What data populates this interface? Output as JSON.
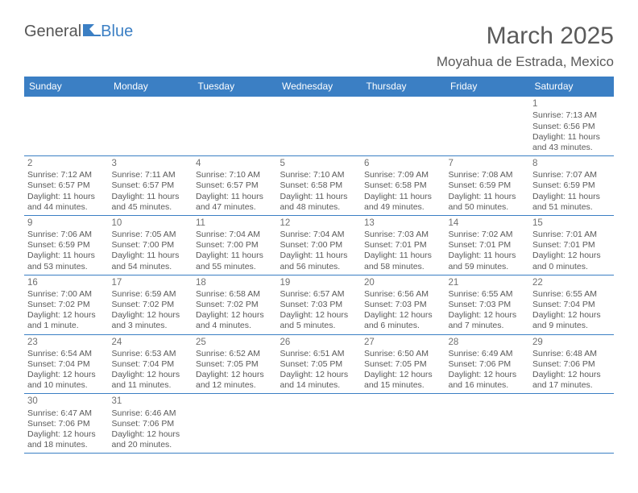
{
  "logo": {
    "text1": "General",
    "text2": "Blue"
  },
  "title": "March 2025",
  "location": "Moyahua de Estrada, Mexico",
  "colors": {
    "header_bg": "#3b7fc4",
    "header_text": "#ffffff",
    "cell_border": "#3b7fc4",
    "text": "#5a5a5a"
  },
  "dayNames": [
    "Sunday",
    "Monday",
    "Tuesday",
    "Wednesday",
    "Thursday",
    "Friday",
    "Saturday"
  ],
  "weeks": [
    [
      null,
      null,
      null,
      null,
      null,
      null,
      {
        "n": "1",
        "sr": "Sunrise: 7:13 AM",
        "ss": "Sunset: 6:56 PM",
        "dl": "Daylight: 11 hours and 43 minutes."
      }
    ],
    [
      {
        "n": "2",
        "sr": "Sunrise: 7:12 AM",
        "ss": "Sunset: 6:57 PM",
        "dl": "Daylight: 11 hours and 44 minutes."
      },
      {
        "n": "3",
        "sr": "Sunrise: 7:11 AM",
        "ss": "Sunset: 6:57 PM",
        "dl": "Daylight: 11 hours and 45 minutes."
      },
      {
        "n": "4",
        "sr": "Sunrise: 7:10 AM",
        "ss": "Sunset: 6:57 PM",
        "dl": "Daylight: 11 hours and 47 minutes."
      },
      {
        "n": "5",
        "sr": "Sunrise: 7:10 AM",
        "ss": "Sunset: 6:58 PM",
        "dl": "Daylight: 11 hours and 48 minutes."
      },
      {
        "n": "6",
        "sr": "Sunrise: 7:09 AM",
        "ss": "Sunset: 6:58 PM",
        "dl": "Daylight: 11 hours and 49 minutes."
      },
      {
        "n": "7",
        "sr": "Sunrise: 7:08 AM",
        "ss": "Sunset: 6:59 PM",
        "dl": "Daylight: 11 hours and 50 minutes."
      },
      {
        "n": "8",
        "sr": "Sunrise: 7:07 AM",
        "ss": "Sunset: 6:59 PM",
        "dl": "Daylight: 11 hours and 51 minutes."
      }
    ],
    [
      {
        "n": "9",
        "sr": "Sunrise: 7:06 AM",
        "ss": "Sunset: 6:59 PM",
        "dl": "Daylight: 11 hours and 53 minutes."
      },
      {
        "n": "10",
        "sr": "Sunrise: 7:05 AM",
        "ss": "Sunset: 7:00 PM",
        "dl": "Daylight: 11 hours and 54 minutes."
      },
      {
        "n": "11",
        "sr": "Sunrise: 7:04 AM",
        "ss": "Sunset: 7:00 PM",
        "dl": "Daylight: 11 hours and 55 minutes."
      },
      {
        "n": "12",
        "sr": "Sunrise: 7:04 AM",
        "ss": "Sunset: 7:00 PM",
        "dl": "Daylight: 11 hours and 56 minutes."
      },
      {
        "n": "13",
        "sr": "Sunrise: 7:03 AM",
        "ss": "Sunset: 7:01 PM",
        "dl": "Daylight: 11 hours and 58 minutes."
      },
      {
        "n": "14",
        "sr": "Sunrise: 7:02 AM",
        "ss": "Sunset: 7:01 PM",
        "dl": "Daylight: 11 hours and 59 minutes."
      },
      {
        "n": "15",
        "sr": "Sunrise: 7:01 AM",
        "ss": "Sunset: 7:01 PM",
        "dl": "Daylight: 12 hours and 0 minutes."
      }
    ],
    [
      {
        "n": "16",
        "sr": "Sunrise: 7:00 AM",
        "ss": "Sunset: 7:02 PM",
        "dl": "Daylight: 12 hours and 1 minute."
      },
      {
        "n": "17",
        "sr": "Sunrise: 6:59 AM",
        "ss": "Sunset: 7:02 PM",
        "dl": "Daylight: 12 hours and 3 minutes."
      },
      {
        "n": "18",
        "sr": "Sunrise: 6:58 AM",
        "ss": "Sunset: 7:02 PM",
        "dl": "Daylight: 12 hours and 4 minutes."
      },
      {
        "n": "19",
        "sr": "Sunrise: 6:57 AM",
        "ss": "Sunset: 7:03 PM",
        "dl": "Daylight: 12 hours and 5 minutes."
      },
      {
        "n": "20",
        "sr": "Sunrise: 6:56 AM",
        "ss": "Sunset: 7:03 PM",
        "dl": "Daylight: 12 hours and 6 minutes."
      },
      {
        "n": "21",
        "sr": "Sunrise: 6:55 AM",
        "ss": "Sunset: 7:03 PM",
        "dl": "Daylight: 12 hours and 7 minutes."
      },
      {
        "n": "22",
        "sr": "Sunrise: 6:55 AM",
        "ss": "Sunset: 7:04 PM",
        "dl": "Daylight: 12 hours and 9 minutes."
      }
    ],
    [
      {
        "n": "23",
        "sr": "Sunrise: 6:54 AM",
        "ss": "Sunset: 7:04 PM",
        "dl": "Daylight: 12 hours and 10 minutes."
      },
      {
        "n": "24",
        "sr": "Sunrise: 6:53 AM",
        "ss": "Sunset: 7:04 PM",
        "dl": "Daylight: 12 hours and 11 minutes."
      },
      {
        "n": "25",
        "sr": "Sunrise: 6:52 AM",
        "ss": "Sunset: 7:05 PM",
        "dl": "Daylight: 12 hours and 12 minutes."
      },
      {
        "n": "26",
        "sr": "Sunrise: 6:51 AM",
        "ss": "Sunset: 7:05 PM",
        "dl": "Daylight: 12 hours and 14 minutes."
      },
      {
        "n": "27",
        "sr": "Sunrise: 6:50 AM",
        "ss": "Sunset: 7:05 PM",
        "dl": "Daylight: 12 hours and 15 minutes."
      },
      {
        "n": "28",
        "sr": "Sunrise: 6:49 AM",
        "ss": "Sunset: 7:06 PM",
        "dl": "Daylight: 12 hours and 16 minutes."
      },
      {
        "n": "29",
        "sr": "Sunrise: 6:48 AM",
        "ss": "Sunset: 7:06 PM",
        "dl": "Daylight: 12 hours and 17 minutes."
      }
    ],
    [
      {
        "n": "30",
        "sr": "Sunrise: 6:47 AM",
        "ss": "Sunset: 7:06 PM",
        "dl": "Daylight: 12 hours and 18 minutes."
      },
      {
        "n": "31",
        "sr": "Sunrise: 6:46 AM",
        "ss": "Sunset: 7:06 PM",
        "dl": "Daylight: 12 hours and 20 minutes."
      },
      null,
      null,
      null,
      null,
      null
    ]
  ]
}
